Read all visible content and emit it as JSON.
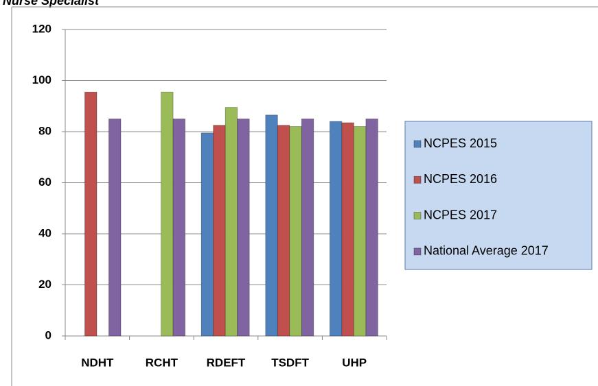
{
  "chart_data": {
    "type": "bar",
    "title": "Nurse Specialist",
    "categories": [
      "NDHT",
      "RCHT",
      "RDEFT",
      "TSDFT",
      "UHP"
    ],
    "series": [
      {
        "name": "NCPES 2015",
        "color": "#4f81bd",
        "values": [
          null,
          null,
          79.5,
          86.5,
          84
        ]
      },
      {
        "name": "NCPES 2016",
        "color": "#c0504d",
        "values": [
          95.5,
          null,
          82.5,
          82.5,
          83.5
        ]
      },
      {
        "name": "NCPES 2017",
        "color": "#9bbb59",
        "values": [
          null,
          95.5,
          89.5,
          82,
          82
        ]
      },
      {
        "name": "National Average 2017",
        "color": "#8064a2",
        "values": [
          85,
          85,
          85,
          85,
          85
        ]
      }
    ],
    "ylim": [
      0,
      120
    ],
    "yticks": [
      0,
      20,
      40,
      60,
      80,
      100,
      120
    ],
    "grid": true,
    "legend": "right"
  }
}
